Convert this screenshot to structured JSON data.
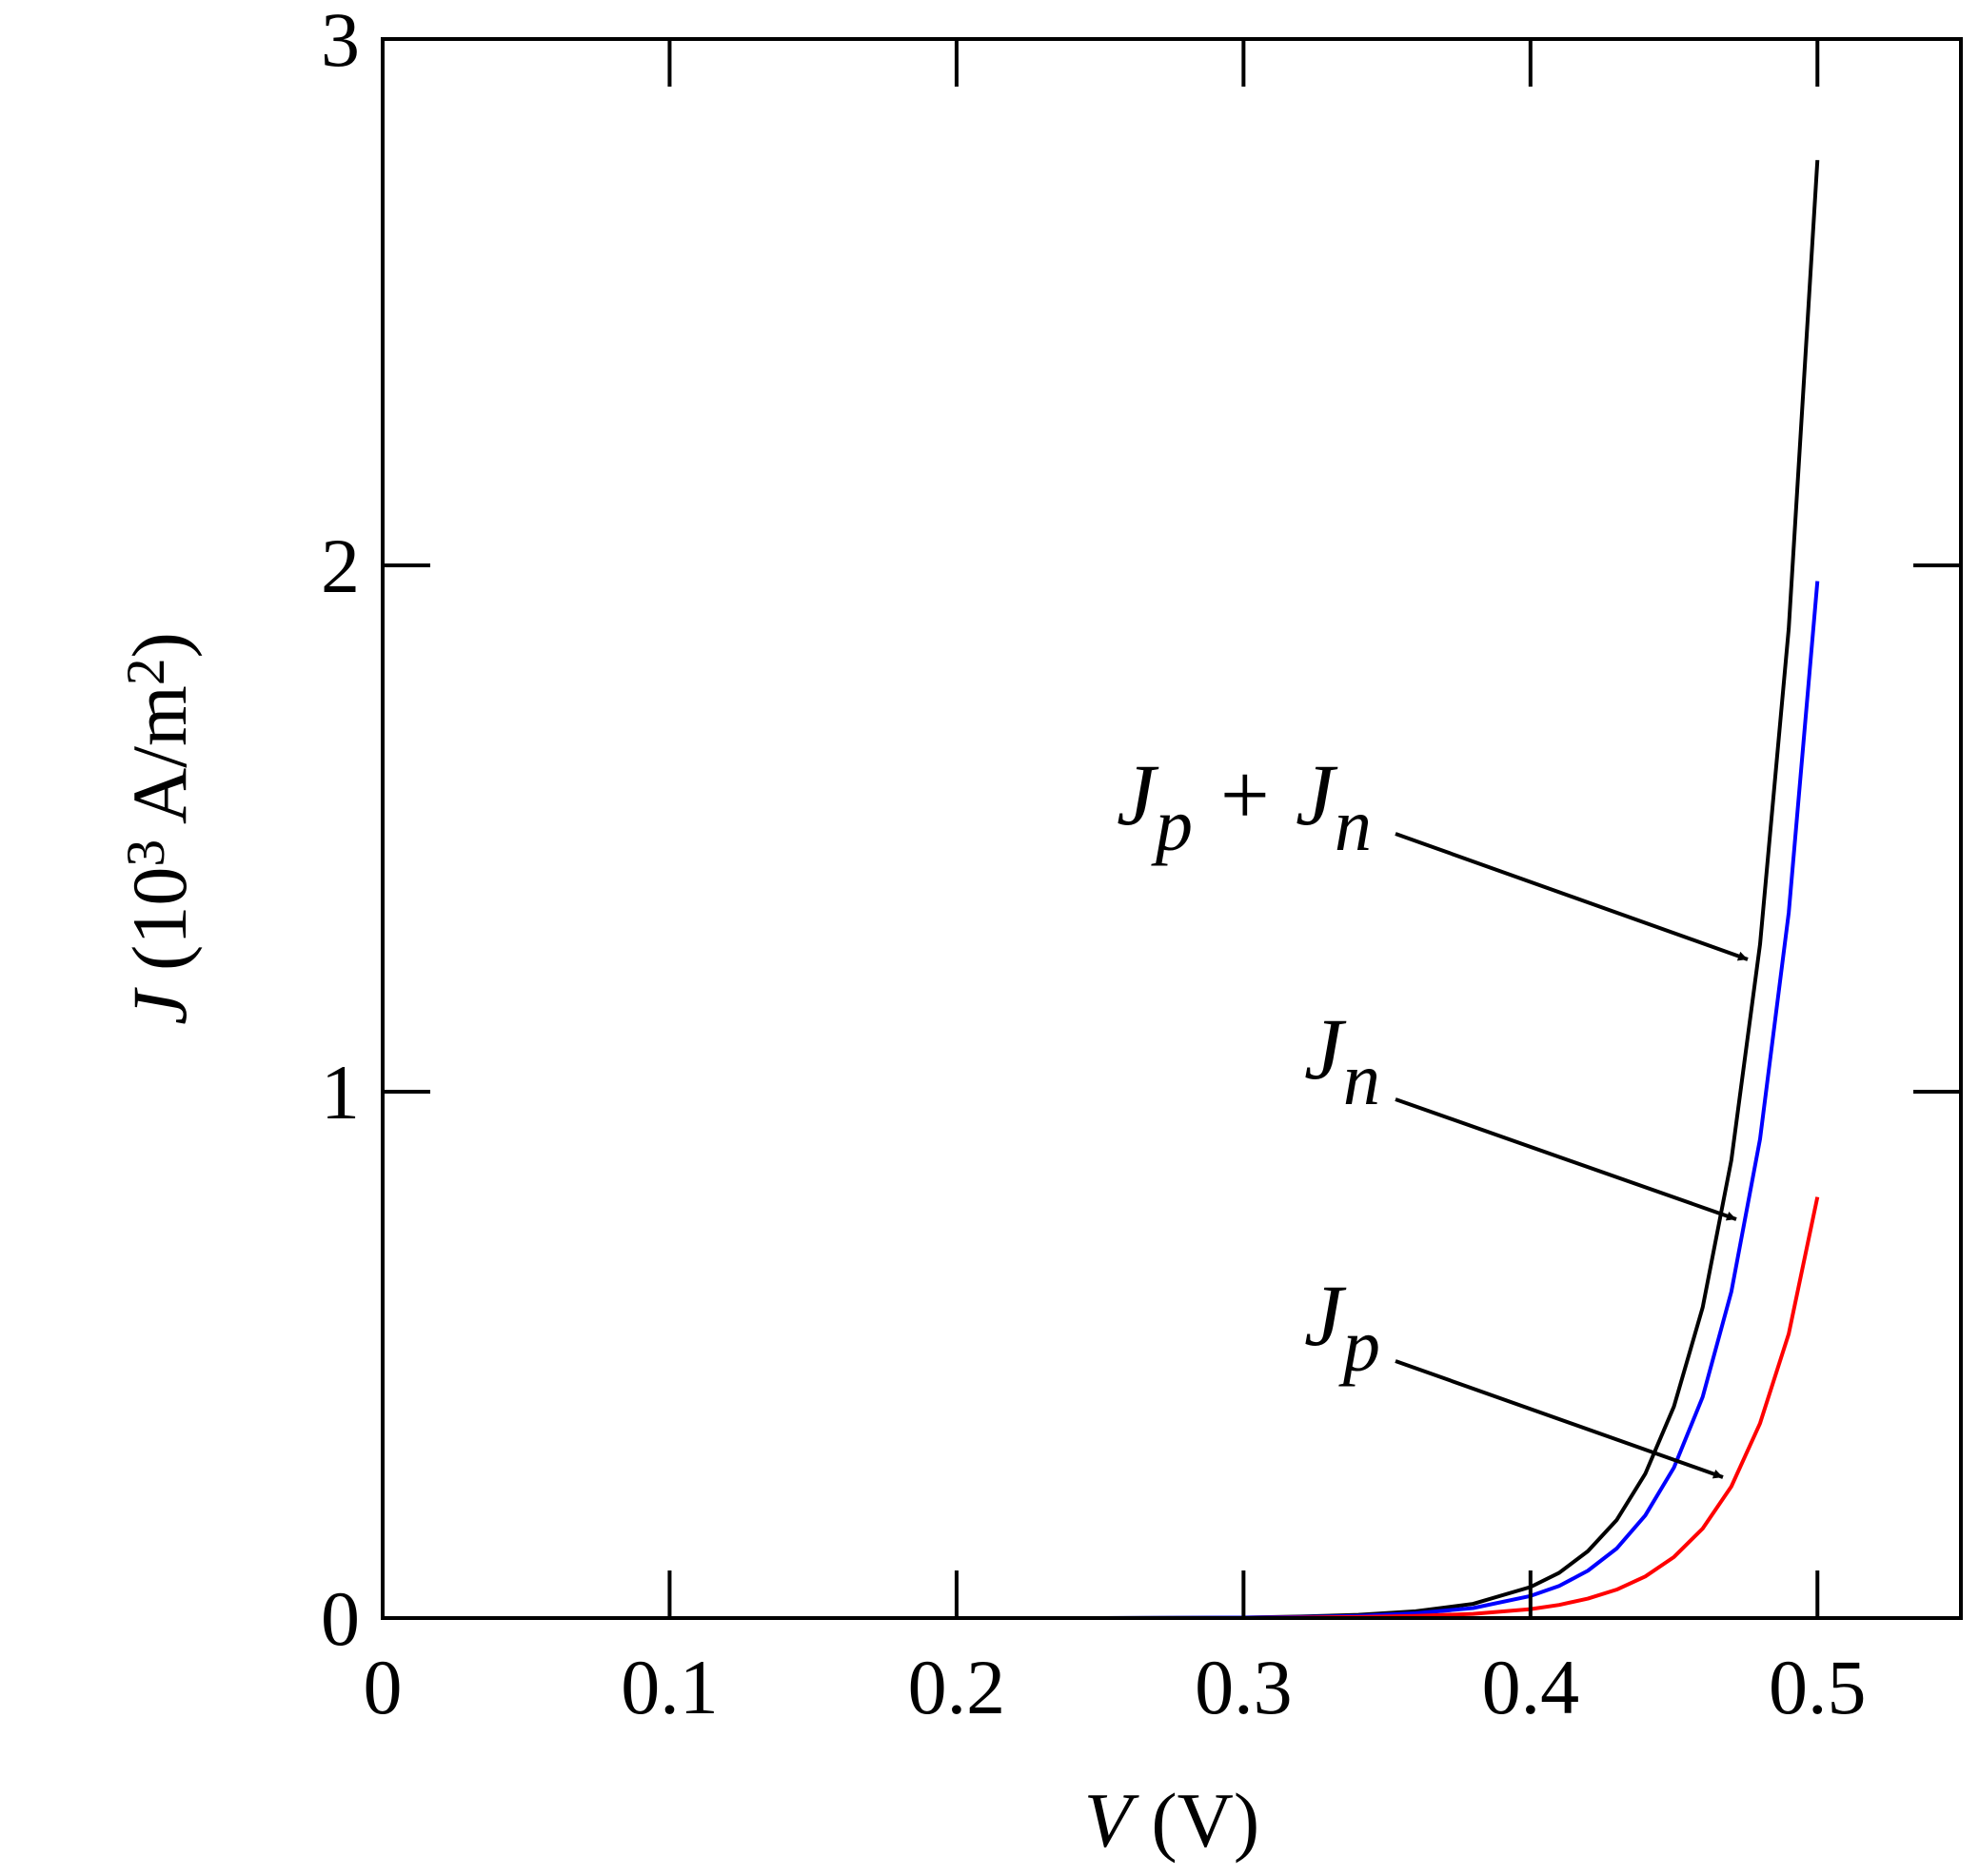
{
  "chart_data": {
    "type": "line",
    "x_label": [
      {
        "text": "V",
        "italic": true
      },
      {
        "text": " (V)"
      }
    ],
    "y_label": [
      {
        "text": "J",
        "italic": true
      },
      {
        "text": " (10"
      },
      {
        "sup": "3"
      },
      {
        "text": " A/m"
      },
      {
        "sup": "2"
      },
      {
        "text": ")"
      }
    ],
    "x": [
      0,
      0.05,
      0.1,
      0.15,
      0.2,
      0.25,
      0.3,
      0.32,
      0.34,
      0.36,
      0.38,
      0.4,
      0.41,
      0.42,
      0.43,
      0.44,
      0.45,
      0.46,
      0.47,
      0.48,
      0.49,
      0.5
    ],
    "series": [
      {
        "color": "#000000",
        "values": [
          0,
          0,
          0,
          0,
          0,
          0,
          0.001,
          0.003,
          0.006,
          0.013,
          0.027,
          0.059,
          0.086,
          0.127,
          0.186,
          0.274,
          0.402,
          0.59,
          0.87,
          1.28,
          1.88,
          2.77
        ]
      },
      {
        "color": "#0000ff",
        "values": [
          0,
          0,
          0,
          0,
          0,
          0,
          0.001,
          0.002,
          0.004,
          0.009,
          0.019,
          0.042,
          0.061,
          0.09,
          0.132,
          0.195,
          0.286,
          0.42,
          0.62,
          0.91,
          1.34,
          1.97
        ]
      },
      {
        "color": "#ff0000",
        "values": [
          0,
          0,
          0,
          0,
          0,
          0,
          0,
          0.001,
          0.002,
          0.004,
          0.008,
          0.017,
          0.025,
          0.037,
          0.054,
          0.079,
          0.116,
          0.17,
          0.25,
          0.37,
          0.54,
          0.8
        ]
      }
    ],
    "annotations": [
      {
        "label": [
          {
            "text": "J"
          },
          {
            "sub": "p"
          },
          {
            "text": " + J"
          },
          {
            "sub": "n"
          }
        ]
      },
      {
        "label": [
          {
            "text": "J"
          },
          {
            "sub": "n"
          }
        ]
      },
      {
        "label": [
          {
            "text": "J"
          },
          {
            "sub": "p"
          }
        ]
      }
    ],
    "xlim": [
      0,
      0.55
    ],
    "xticks": [
      0,
      0.1,
      0.2,
      0.3,
      0.4,
      0.5
    ],
    "ylim": [
      0,
      3
    ],
    "yticks": [
      0,
      1,
      2,
      3
    ]
  }
}
